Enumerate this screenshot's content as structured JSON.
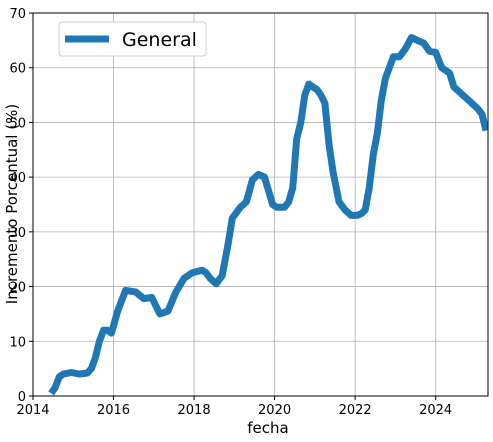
{
  "chart_data": {
    "type": "line",
    "title": "",
    "xlabel": "fecha",
    "ylabel": "Incremento Porcentual (%)",
    "xlim": [
      2014,
      2025.3
    ],
    "ylim": [
      0,
      70
    ],
    "x_ticks": [
      2014,
      2016,
      2018,
      2020,
      2022,
      2024
    ],
    "y_ticks": [
      0,
      10,
      20,
      30,
      40,
      50,
      60,
      70
    ],
    "grid": true,
    "legend_position": "upper-left",
    "series": [
      {
        "name": "General",
        "color": "#1f77b4",
        "x": [
          2014.45,
          2014.55,
          2014.65,
          2014.75,
          2014.95,
          2015.15,
          2015.35,
          2015.45,
          2015.55,
          2015.65,
          2015.75,
          2015.85,
          2015.95,
          2016.1,
          2016.3,
          2016.55,
          2016.75,
          2016.95,
          2017.15,
          2017.35,
          2017.55,
          2017.75,
          2017.95,
          2018.1,
          2018.2,
          2018.3,
          2018.4,
          2018.55,
          2018.7,
          2018.85,
          2018.95,
          2019.15,
          2019.3,
          2019.45,
          2019.6,
          2019.75,
          2019.95,
          2020.05,
          2020.15,
          2020.25,
          2020.35,
          2020.45,
          2020.55,
          2020.65,
          2020.75,
          2020.85,
          2020.95,
          2021.05,
          2021.15,
          2021.25,
          2021.35,
          2021.45,
          2021.6,
          2021.75,
          2021.9,
          2022.05,
          2022.15,
          2022.25,
          2022.35,
          2022.45,
          2022.55,
          2022.65,
          2022.75,
          2022.85,
          2022.95,
          2023.1,
          2023.25,
          2023.4,
          2023.55,
          2023.7,
          2023.85,
          2024.0,
          2024.15,
          2024.25,
          2024.35,
          2024.45,
          2024.6,
          2024.75,
          2024.9,
          2025.05,
          2025.15,
          2025.25
        ],
        "y": [
          0.5,
          1.5,
          3.5,
          4.0,
          4.3,
          4.0,
          4.2,
          5.0,
          7.0,
          10.0,
          12.0,
          12.0,
          11.5,
          15.5,
          19.3,
          19.0,
          17.8,
          18.0,
          15.0,
          15.5,
          19.0,
          21.5,
          22.5,
          22.8,
          23.0,
          22.5,
          21.5,
          20.5,
          22.0,
          28.0,
          32.5,
          34.5,
          35.5,
          39.5,
          40.5,
          40.0,
          35.0,
          34.5,
          34.5,
          34.5,
          35.5,
          38.0,
          47.0,
          50.0,
          55.0,
          57.0,
          56.5,
          56.0,
          55.0,
          53.5,
          46.0,
          41.0,
          35.5,
          34.0,
          33.0,
          33.0,
          33.3,
          34.0,
          38.0,
          44.0,
          48.0,
          54.0,
          58.0,
          60.0,
          62.0,
          62.0,
          63.5,
          65.5,
          65.0,
          64.5,
          63.0,
          62.8,
          60.0,
          59.5,
          59.0,
          56.5,
          55.5,
          54.5,
          53.5,
          52.5,
          51.5,
          48.5
        ]
      }
    ]
  }
}
